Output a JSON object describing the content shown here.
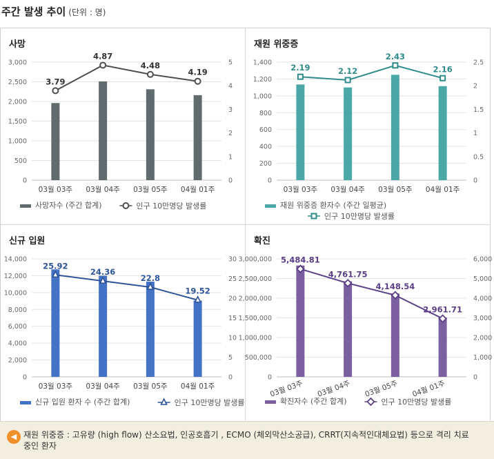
{
  "header": {
    "title": "주간 발생 추이",
    "unit": "(단위 : 명)"
  },
  "chart_data": [
    {
      "id": "deaths",
      "type": "bar",
      "title": "사망",
      "categories": [
        "03월 03주",
        "03월 04주",
        "03월 05주",
        "04월 01주"
      ],
      "series": [
        {
          "name": "사망자수 (주간 합계)",
          "type": "bar",
          "axis": "left",
          "values": [
            1960,
            2510,
            2310,
            2160
          ],
          "color": "#5f6b6d"
        },
        {
          "name": "인구 10만명당 발생률",
          "type": "line",
          "axis": "right",
          "marker": "circle",
          "values": [
            3.79,
            4.87,
            4.48,
            4.19
          ],
          "labels": [
            "3.79",
            "4.87",
            "4.48",
            "4.19"
          ],
          "color": "#4d4d4d"
        }
      ],
      "left_axis": {
        "min": 0,
        "max": 3000,
        "ticks": [
          0,
          500,
          1000,
          1500,
          2000,
          2500,
          3000
        ],
        "tick_labels": [
          "0",
          "500",
          "1,000",
          "1,500",
          "2,000",
          "2,500",
          "3,000"
        ]
      },
      "right_axis": {
        "min": 0,
        "max": 5,
        "ticks": [
          0,
          1,
          2,
          3,
          4,
          5
        ],
        "tick_labels": [
          "0",
          "1",
          "2",
          "3",
          "4",
          "5"
        ]
      },
      "label_color": "#333333",
      "legend": [
        "사망자수 (주간 합계)",
        "인구 10만명당 발생률"
      ],
      "legend_layout": "single-row",
      "rotated_categories": false
    },
    {
      "id": "severe",
      "type": "bar",
      "title": "재원 위중증",
      "categories": [
        "03월 03주",
        "03월 04주",
        "03월 05주",
        "04월 01주"
      ],
      "series": [
        {
          "name": "재원 위중증 환자수 (주간 일평균)",
          "type": "bar",
          "axis": "left",
          "values": [
            1135,
            1100,
            1250,
            1115
          ],
          "color": "#4ba8a6"
        },
        {
          "name": "인구 10만명당 발생률",
          "type": "line",
          "axis": "right",
          "marker": "square",
          "values": [
            2.19,
            2.12,
            2.43,
            2.16
          ],
          "labels": [
            "2.19",
            "2.12",
            "2.43",
            "2.16"
          ],
          "color": "#2e8c8a"
        }
      ],
      "left_axis": {
        "min": 0,
        "max": 1400,
        "ticks": [
          0,
          200,
          400,
          600,
          800,
          1000,
          1200,
          1400
        ],
        "tick_labels": [
          "0",
          "200",
          "400",
          "600",
          "800",
          "1,000",
          "1,200",
          "1,400"
        ]
      },
      "right_axis": {
        "min": 0,
        "max": 2.5,
        "ticks": [
          0,
          0.5,
          1,
          1.5,
          2,
          2.5
        ],
        "tick_labels": [
          "0",
          "0.5",
          "1",
          "1.5",
          "2",
          "2.5"
        ]
      },
      "label_color": "#2e8c8a",
      "legend": [
        "재원 위중증 환자수 (주간 일평균)",
        "인구 10만명당 발생률"
      ],
      "legend_layout": "two-row",
      "rotated_categories": false
    },
    {
      "id": "hospital",
      "type": "bar",
      "title": "신규 입원",
      "categories": [
        "03월 03주",
        "03월 04주",
        "03월 05주",
        "04월 01주"
      ],
      "series": [
        {
          "name": "신규 입원 환자 수 (주간 합계)",
          "type": "bar",
          "axis": "left",
          "values": [
            12750,
            12000,
            11300,
            9050
          ],
          "color": "#4472c4"
        },
        {
          "name": "인구 10만명당 발생률",
          "type": "line",
          "axis": "right",
          "marker": "triangle",
          "values": [
            25.92,
            24.36,
            22.8,
            19.52
          ],
          "labels": [
            "25.92",
            "24.36",
            "22.8",
            "19.52"
          ],
          "color": "#2e5597"
        }
      ],
      "left_axis": {
        "min": 0,
        "max": 14000,
        "ticks": [
          0,
          2000,
          4000,
          6000,
          8000,
          10000,
          12000,
          14000
        ],
        "tick_labels": [
          "0",
          "2,000",
          "4,000",
          "6,000",
          "8,000",
          "10,000",
          "12,000",
          "14,000"
        ]
      },
      "right_axis": {
        "min": 0,
        "max": 30,
        "ticks": [
          0,
          5,
          10,
          15,
          20,
          25,
          30
        ],
        "tick_labels": [
          "0",
          "5",
          "10",
          "15",
          "20",
          "25",
          "30"
        ]
      },
      "label_color": "#2e5597",
      "legend": [
        "신규 입원 환자 수 (주간 합계)",
        "인구 10만명당 발생률"
      ],
      "legend_layout": "single-row",
      "rotated_categories": false
    },
    {
      "id": "confirmed",
      "type": "bar",
      "title": "확진",
      "categories": [
        "03월 03주",
        "03월 04주",
        "03월 05주",
        "04월 01주"
      ],
      "series": [
        {
          "name": "확진자수 (주간 합계)",
          "type": "bar",
          "axis": "left",
          "values": [
            2830000,
            2430000,
            2120000,
            1510000
          ],
          "color": "#7b5fa0"
        },
        {
          "name": "인구 10만명당 발생률",
          "type": "line",
          "axis": "right",
          "marker": "diamond",
          "values": [
            5484.81,
            4761.75,
            4148.54,
            2961.71
          ],
          "labels": [
            "5,484.81",
            "4,761.75",
            "4,148.54",
            "2,961.71"
          ],
          "color": "#5a3f86"
        }
      ],
      "left_axis": {
        "min": 0,
        "max": 3000000,
        "ticks": [
          0,
          500000,
          1000000,
          1500000,
          2000000,
          2500000,
          3000000
        ],
        "tick_labels": [
          "0",
          "500,000",
          "1,000,000",
          "1,500,000",
          "2,000,000",
          "2,500,000",
          "3,000,000"
        ]
      },
      "right_axis": {
        "min": 0,
        "max": 6000,
        "ticks": [
          0,
          1000,
          2000,
          3000,
          4000,
          5000,
          6000
        ],
        "tick_labels": [
          "0",
          "1,000",
          "2,000",
          "3,000",
          "4,000",
          "5,000",
          "6,000"
        ]
      },
      "label_color": "#5a3f86",
      "legend": [
        "확진자수 (주간 합계)",
        "인구 10만명당 발생률"
      ],
      "legend_layout": "single-row",
      "rotated_categories": true
    }
  ],
  "footnote": {
    "icon": "speaker-icon",
    "text": "재원 위중증 : 고유량 (high flow) 산소요법, 인공호흡기 , ECMO (체외막산소공급), CRRT(지속적인대체요법) 등으로 격리 치료 중인 환자"
  }
}
